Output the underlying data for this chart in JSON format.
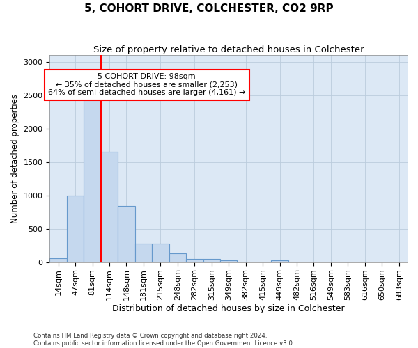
{
  "title": "5, COHORT DRIVE, COLCHESTER, CO2 9RP",
  "subtitle": "Size of property relative to detached houses in Colchester",
  "xlabel": "Distribution of detached houses by size in Colchester",
  "ylabel": "Number of detached properties",
  "categories": [
    "14sqm",
    "47sqm",
    "81sqm",
    "114sqm",
    "148sqm",
    "181sqm",
    "215sqm",
    "248sqm",
    "282sqm",
    "315sqm",
    "349sqm",
    "382sqm",
    "415sqm",
    "449sqm",
    "482sqm",
    "516sqm",
    "549sqm",
    "583sqm",
    "616sqm",
    "650sqm",
    "683sqm"
  ],
  "bar_values": [
    55,
    1000,
    2460,
    1650,
    840,
    275,
    275,
    130,
    50,
    45,
    30,
    0,
    0,
    30,
    0,
    0,
    0,
    0,
    0,
    0,
    0
  ],
  "bar_color": "#c5d8ee",
  "bar_edge_color": "#6699cc",
  "red_line_x": 2.5,
  "red_line_color": "red",
  "annotation_text": "5 COHORT DRIVE: 98sqm\n← 35% of detached houses are smaller (2,253)\n64% of semi-detached houses are larger (4,161) →",
  "annotation_box_color": "white",
  "annotation_box_edge_color": "red",
  "ylim": [
    0,
    3100
  ],
  "yticks": [
    0,
    500,
    1000,
    1500,
    2000,
    2500,
    3000
  ],
  "grid_color": "#bbccdd",
  "bg_color": "#dce8f5",
  "footer_line1": "Contains HM Land Registry data © Crown copyright and database right 2024.",
  "footer_line2": "Contains public sector information licensed under the Open Government Licence v3.0.",
  "title_fontsize": 11,
  "subtitle_fontsize": 9.5,
  "xlabel_fontsize": 9,
  "ylabel_fontsize": 8.5,
  "tick_fontsize": 8,
  "annot_fontsize": 8
}
